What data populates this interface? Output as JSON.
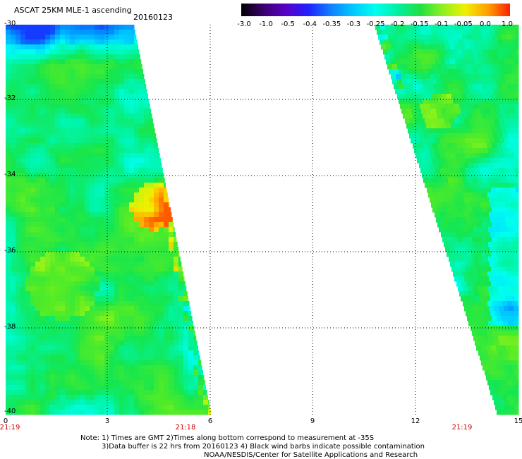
{
  "title": "ASCAT 25KM MLE-1 ascending",
  "date": "20160123",
  "colorbar": {
    "ticks": [
      "-3.0",
      "-1.0",
      "-0.5",
      "-0.4",
      "-0.35",
      "-0.3",
      "-0.25",
      "-0.2",
      "-0.15",
      "-0.1",
      "-0.05",
      "0.0",
      "1.0"
    ],
    "colors": [
      "#000000",
      "#3a0070",
      "#5a00c8",
      "#2020ff",
      "#1080ff",
      "#00c8ff",
      "#00ffee",
      "#00f0a0",
      "#20e040",
      "#90f020",
      "#f0f000",
      "#ffa000",
      "#ff2000"
    ]
  },
  "axes": {
    "y_labels": [
      "-30",
      "-32",
      "-34",
      "-36",
      "-38",
      "-40"
    ],
    "x_labels": [
      "0",
      "3",
      "6",
      "9",
      "12",
      "15"
    ],
    "time_labels": [
      "21:19",
      "21:18",
      "21:19"
    ]
  },
  "notes": {
    "line1": "Note: 1) Times are GMT 2)Times along bottom correspond to measurement at -35S",
    "line2": "3)Data buffer is 22 hrs from 20160123 4) Black wind barbs indicate possible contamination",
    "line3": "NOAA/NESDIS/Center for Satellite Applications and Research"
  }
}
